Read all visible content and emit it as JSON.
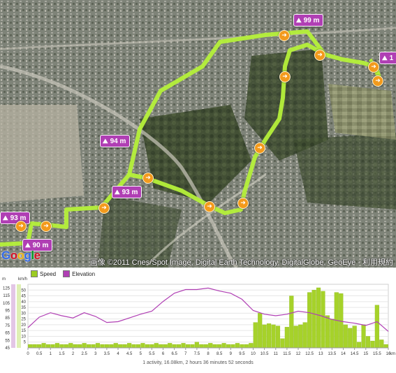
{
  "map": {
    "elevation_badges": [
      "99 m",
      "94 m",
      "93 m",
      "93 m",
      "90 m",
      "1"
    ],
    "copyright": "画像 ©2011 Cnes/Spot Image, Digital Earth Technology, DigitalGlobe, GeoEye - 利用規約",
    "google_logo": "Google",
    "route_color": "#b5f03a",
    "badge_color": "#b03fb4",
    "marker_color": "#f39a1c"
  },
  "legend": {
    "speed": "Speed",
    "elevation": "Elevation",
    "speed_color": "#9ccc22",
    "elevation_color": "#b03fb4"
  },
  "summary": "1 activity, 16.08km, 2 hours 36 minutes 52 seconds",
  "chart_data": {
    "type": "bar",
    "xlabel": "km",
    "xlim": [
      0,
      16
    ],
    "x_ticks": [
      "0",
      "0.5",
      "1",
      "1.5",
      "2",
      "2.5",
      "3",
      "3.5",
      "4",
      "4.5",
      "5",
      "5.5",
      "6",
      "6.5",
      "7",
      "7.5",
      "8",
      "8.5",
      "9",
      "9.5",
      "10",
      "10.5",
      "11",
      "11.5",
      "12",
      "12.5",
      "13",
      "13.5",
      "14",
      "14.5",
      "15",
      "15.5",
      "16"
    ],
    "left_axis": {
      "label": "m",
      "ticks": [
        "125",
        "115",
        "105",
        "95",
        "85",
        "75",
        "65",
        "55",
        "45"
      ]
    },
    "right_axis": {
      "label": "km/h",
      "ticks": [
        "50",
        "45",
        "40",
        "35",
        "30",
        "25",
        "20",
        "15",
        "10",
        "5"
      ],
      "ylim": [
        0,
        55
      ]
    },
    "series": [
      {
        "name": "Speed",
        "type": "bar",
        "x": [
          0.1,
          0.3,
          0.5,
          0.7,
          0.9,
          1.1,
          1.3,
          1.5,
          1.7,
          1.9,
          2.1,
          2.3,
          2.5,
          2.7,
          2.9,
          3.1,
          3.3,
          3.5,
          3.7,
          3.9,
          4.1,
          4.3,
          4.5,
          4.7,
          4.9,
          5.1,
          5.3,
          5.5,
          5.7,
          5.9,
          6.1,
          6.3,
          6.5,
          6.7,
          6.9,
          7.1,
          7.3,
          7.5,
          7.7,
          7.9,
          8.1,
          8.3,
          8.5,
          8.7,
          8.9,
          9.1,
          9.3,
          9.5,
          9.7,
          9.9,
          10.1,
          10.3,
          10.5,
          10.7,
          10.9,
          11.1,
          11.3,
          11.5,
          11.7,
          11.9,
          12.1,
          12.3,
          12.5,
          12.7,
          12.9,
          13.1,
          13.3,
          13.5,
          13.7,
          13.9,
          14.1,
          14.3,
          14.5,
          14.7,
          14.9,
          15.1,
          15.3,
          15.5,
          15.7,
          15.9
        ],
        "values": [
          3,
          3,
          3,
          4,
          3,
          3,
          4,
          3,
          3,
          4,
          3,
          3,
          4,
          3,
          3,
          4,
          3,
          3,
          3,
          4,
          3,
          3,
          4,
          3,
          3,
          4,
          3,
          3,
          4,
          3,
          3,
          4,
          3,
          3,
          4,
          3,
          3,
          5,
          3,
          3,
          4,
          3,
          3,
          4,
          3,
          3,
          4,
          3,
          3,
          4,
          22,
          30,
          20,
          21,
          20,
          19,
          8,
          18,
          45,
          19,
          20,
          22,
          48,
          50,
          52,
          49,
          28,
          25,
          48,
          47,
          20,
          17,
          19,
          5,
          20,
          10,
          6,
          37,
          7,
          3
        ]
      },
      {
        "name": "Elevation",
        "type": "line",
        "x": [
          0,
          0.5,
          1,
          1.5,
          2,
          2.5,
          3,
          3.5,
          4,
          4.5,
          5,
          5.5,
          6,
          6.5,
          7,
          7.5,
          8,
          8.5,
          9,
          9.5,
          10,
          10.5,
          11,
          11.5,
          12,
          12.5,
          13,
          13.5,
          14,
          14.5,
          15,
          15.5,
          16
        ],
        "values": [
          72,
          86,
          92,
          88,
          85,
          92,
          87,
          79,
          80,
          85,
          90,
          94,
          107,
          118,
          123,
          123,
          125,
          121,
          118,
          110,
          95,
          90,
          88,
          90,
          94,
          92,
          88,
          83,
          80,
          78,
          75,
          80,
          67
        ]
      }
    ]
  }
}
